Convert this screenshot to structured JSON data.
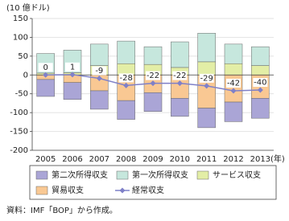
{
  "chart_data": {
    "type": "bar",
    "stacked": true,
    "y_unit_label": "(10 億ドル)",
    "x_unit_label": "(年)",
    "source": "資料：IMF「BOP」から作成。",
    "categories": [
      "2005",
      "2006",
      "2007",
      "2008",
      "2009",
      "2010",
      "2011",
      "2012",
      "2013"
    ],
    "series": [
      {
        "name": "第二次所得収支",
        "color": "#aaa5d6",
        "values": [
          -45,
          -45,
          -49,
          -50,
          -50,
          -48,
          -52,
          -52,
          -53
        ]
      },
      {
        "name": "第一次所得収支",
        "color": "#c6e7dd",
        "values": [
          52,
          60,
          57,
          60,
          47,
          68,
          76,
          52,
          50
        ]
      },
      {
        "name": "サービス収支",
        "color": "#e3eea6",
        "values": [
          5,
          6,
          25,
          30,
          28,
          20,
          35,
          30,
          25
        ]
      },
      {
        "name": "貿易収支",
        "color": "#f9c893",
        "values": [
          -12,
          -20,
          -42,
          -68,
          -47,
          -62,
          -88,
          -72,
          -62
        ]
      },
      {
        "name": "経常収支",
        "type": "line",
        "color": "#7f80c8",
        "values": [
          0,
          1,
          -9,
          -28,
          -22,
          -22,
          -29,
          -42,
          -40
        ]
      }
    ],
    "ylim": [
      -200,
      150
    ],
    "yticks": [
      -200,
      -150,
      -100,
      -50,
      0,
      50,
      100,
      150
    ],
    "grid": true
  }
}
